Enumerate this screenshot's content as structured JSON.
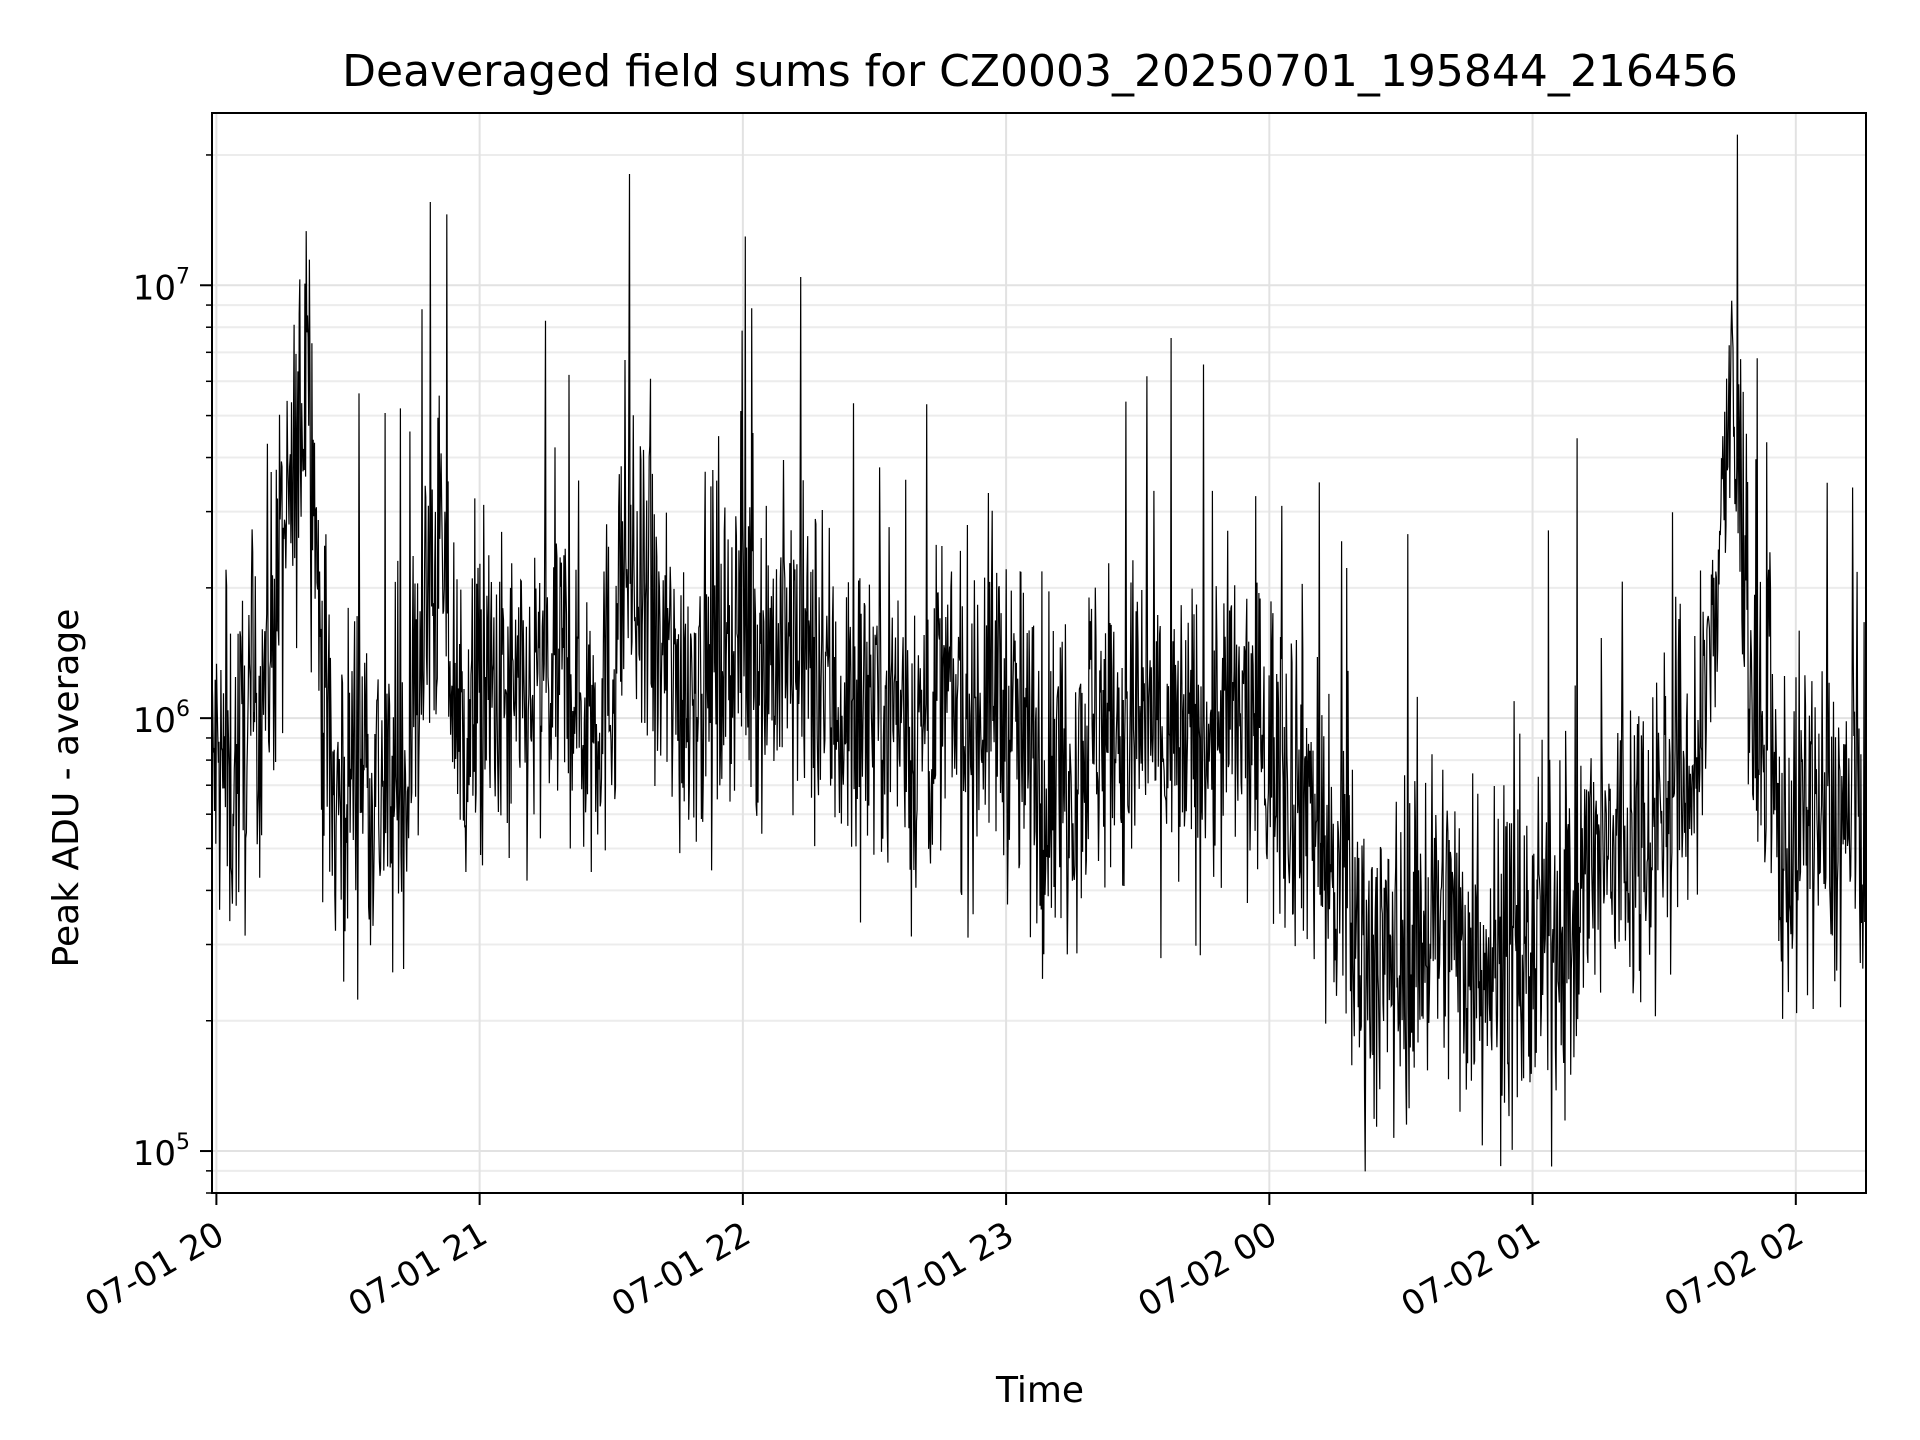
{
  "chart_data": {
    "type": "line",
    "title": "Deaveraged field sums for CZ0003_20250701_195844_216456",
    "xlabel": "Time",
    "ylabel": "Peak ADU - average",
    "y_scale": "log",
    "ylim": [
      80000,
      25000000
    ],
    "xlim": [
      "07-01 19:59",
      "07-02 02:16"
    ],
    "grid": true,
    "legend": "none",
    "line_color": "#000000",
    "x_ticks": [
      {
        "t": "07-01 20:00",
        "label": "07-01 20"
      },
      {
        "t": "07-01 21:00",
        "label": "07-01 21"
      },
      {
        "t": "07-01 22:00",
        "label": "07-01 22"
      },
      {
        "t": "07-01 23:00",
        "label": "07-01 23"
      },
      {
        "t": "07-02 00:00",
        "label": "07-02 00"
      },
      {
        "t": "07-02 01:00",
        "label": "07-02 01"
      },
      {
        "t": "07-02 02:00",
        "label": "07-02 02"
      }
    ],
    "y_ticks": [
      {
        "v": 100000,
        "base": "10",
        "exp": "5"
      },
      {
        "v": 1000000,
        "base": "10",
        "exp": "6"
      },
      {
        "v": 10000000,
        "base": "10",
        "exp": "7"
      }
    ],
    "series": [
      {
        "x": [
          "07-01 19:59",
          "07-01 20:03",
          "07-01 20:09",
          "07-01 20:14",
          "07-01 20:18",
          "07-01 20:21",
          "07-01 20:24",
          "07-01 20:27",
          "07-01 20:33",
          "07-01 20:36",
          "07-01 20:42",
          "07-01 20:47",
          "07-01 20:51",
          "07-01 20:54",
          "07-01 20:57",
          "07-01 21:03",
          "07-01 21:09",
          "07-01 21:15",
          "07-01 21:21",
          "07-01 21:24",
          "07-01 21:30",
          "07-01 21:33",
          "07-01 21:36",
          "07-01 21:39",
          "07-01 21:45",
          "07-01 21:51",
          "07-01 21:57",
          "07-01 22:03",
          "07-01 22:09",
          "07-01 22:15",
          "07-01 22:18",
          "07-01 22:24",
          "07-01 22:27",
          "07-01 22:33",
          "07-01 22:36",
          "07-01 22:39",
          "07-01 22:45",
          "07-01 22:51",
          "07-01 22:57",
          "07-01 23:03",
          "07-01 23:09",
          "07-01 23:15",
          "07-01 23:21",
          "07-01 23:27",
          "07-01 23:33",
          "07-01 23:39",
          "07-01 23:45",
          "07-01 23:51",
          "07-01 23:57",
          "07-02 00:03",
          "07-02 00:09",
          "07-02 00:15",
          "07-02 00:21",
          "07-02 00:27",
          "07-02 00:33",
          "07-02 00:39",
          "07-02 00:45",
          "07-02 00:51",
          "07-02 00:57",
          "07-02 01:03",
          "07-02 01:09",
          "07-02 01:15",
          "07-02 01:21",
          "07-02 01:27",
          "07-02 01:33",
          "07-02 01:39",
          "07-02 01:42",
          "07-02 01:45",
          "07-02 01:48",
          "07-02 01:51",
          "07-02 01:54",
          "07-02 01:57",
          "07-02 02:03",
          "07-02 02:09",
          "07-02 02:15"
        ],
        "y": [
          800000,
          700000,
          1000000,
          2000000,
          3500000,
          8000000,
          1200000,
          600000,
          900000,
          700000,
          600000,
          1500000,
          2500000,
          1200000,
          900000,
          1100000,
          1000000,
          1200000,
          1300000,
          1000000,
          1200000,
          2500000,
          1800000,
          1500000,
          1200000,
          1300000,
          1600000,
          1500000,
          1400000,
          1300000,
          1200000,
          1000000,
          1100000,
          1200000,
          1000000,
          900000,
          1100000,
          1000000,
          1200000,
          900000,
          700000,
          800000,
          1000000,
          900000,
          1000000,
          800000,
          900000,
          1000000,
          900000,
          800000,
          700000,
          400000,
          300000,
          260000,
          320000,
          350000,
          300000,
          280000,
          260000,
          300000,
          350000,
          450000,
          500000,
          600000,
          700000,
          800000,
          2500000,
          5000000,
          3000000,
          800000,
          700000,
          500000,
          600000,
          550000,
          600000
        ]
      }
    ]
  }
}
